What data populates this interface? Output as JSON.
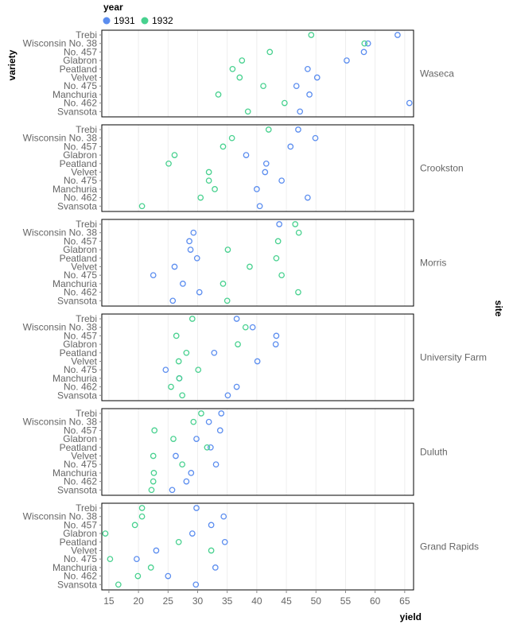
{
  "chart_data": {
    "type": "scatter",
    "xlabel": "yield",
    "ylabel": "variety",
    "facet_label": "site",
    "xlim": [
      13.8,
      66.5
    ],
    "xticks": [
      15,
      20,
      25,
      30,
      35,
      40,
      45,
      50,
      55,
      60,
      65
    ],
    "grid": "vertical",
    "legend": {
      "title": "year",
      "position": "top-left",
      "items": [
        {
          "name": "1931",
          "color": "#5b8def"
        },
        {
          "name": "1932",
          "color": "#48d18f"
        }
      ]
    },
    "varieties": [
      "Trebi",
      "Wisconsin No. 38",
      "No. 457",
      "Glabron",
      "Peatland",
      "Velvet",
      "No. 475",
      "Manchuria",
      "No. 462",
      "Svansota"
    ],
    "facets": [
      {
        "site": "Waseca",
        "series": [
          {
            "name": "1931",
            "values": [
              63.8,
              58.8,
              58.1,
              55.2,
              48.6,
              50.2,
              46.7,
              48.9,
              65.8,
              47.3
            ]
          },
          {
            "name": "1932",
            "values": [
              49.2,
              58.2,
              42.2,
              37.5,
              35.9,
              37.1,
              41.1,
              33.5,
              44.7,
              38.5
            ]
          }
        ]
      },
      {
        "site": "Crookston",
        "series": [
          {
            "name": "1931",
            "values": [
              47.0,
              49.9,
              45.7,
              38.2,
              41.6,
              41.4,
              44.2,
              40.0,
              48.6,
              40.5
            ]
          },
          {
            "name": "1932",
            "values": [
              42.0,
              35.8,
              34.3,
              26.1,
              25.1,
              31.9,
              31.9,
              32.9,
              30.5,
              20.6
            ]
          }
        ]
      },
      {
        "site": "Morris",
        "series": [
          {
            "name": "1931",
            "values": [
              43.8,
              29.3,
              28.6,
              28.8,
              29.9,
              26.1,
              22.5,
              27.5,
              30.3,
              25.8
            ]
          },
          {
            "name": "1932",
            "values": [
              46.5,
              47.1,
              43.6,
              35.1,
              43.3,
              38.8,
              44.2,
              34.3,
              47.0,
              35.0
            ]
          }
        ]
      },
      {
        "site": "University Farm",
        "series": [
          {
            "name": "1931",
            "values": [
              36.6,
              39.3,
              43.3,
              43.2,
              32.8,
              40.1,
              24.6,
              26.9,
              36.6,
              35.1
            ]
          },
          {
            "name": "1932",
            "values": [
              29.1,
              38.1,
              26.4,
              36.8,
              28.1,
              26.8,
              30.1,
              26.9,
              25.5,
              27.4
            ]
          }
        ]
      },
      {
        "site": "Duluth",
        "series": [
          {
            "name": "1931",
            "values": [
              34.0,
              31.9,
              33.8,
              29.8,
              32.2,
              26.3,
              33.1,
              28.9,
              28.1,
              25.7
            ]
          },
          {
            "name": "1932",
            "values": [
              30.6,
              29.3,
              22.7,
              25.9,
              31.6,
              22.5,
              27.4,
              22.6,
              22.5,
              22.2
            ]
          }
        ]
      },
      {
        "site": "Grand Rapids",
        "series": [
          {
            "name": "1931",
            "values": [
              29.8,
              34.4,
              32.3,
              29.1,
              34.6,
              23.0,
              19.7,
              33.0,
              25.0,
              29.7
            ]
          },
          {
            "name": "1932",
            "values": [
              20.6,
              20.6,
              19.4,
              14.4,
              26.8,
              32.3,
              15.2,
              22.1,
              19.9,
              16.6
            ]
          }
        ]
      }
    ]
  }
}
